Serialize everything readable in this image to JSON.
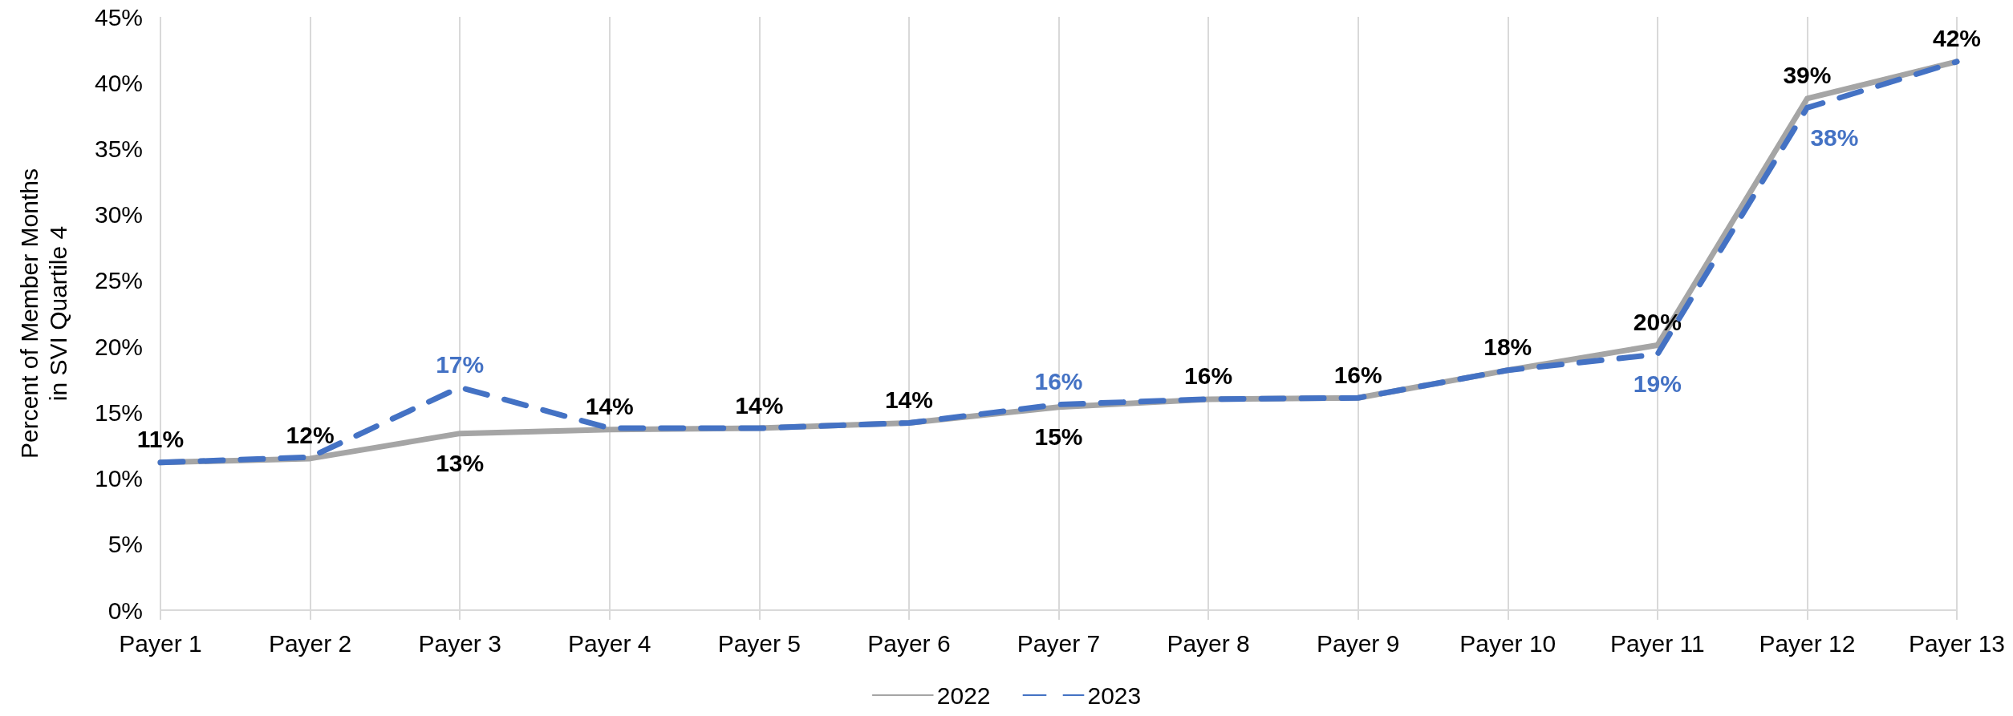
{
  "chart_data": {
    "type": "line",
    "ylabel": "Percent of Member Months\nin SVI Quartile 4",
    "categories": [
      "Payer 1",
      "Payer 2",
      "Payer 3",
      "Payer 4",
      "Payer 5",
      "Payer 6",
      "Payer 7",
      "Payer 8",
      "Payer 9",
      "Payer 10",
      "Payer 11",
      "Payer 12",
      "Payer 13"
    ],
    "series": [
      {
        "name": "2022",
        "color": "#a5a5a5",
        "line_style": "solid",
        "values": [
          11.2,
          11.5,
          13.4,
          13.7,
          13.8,
          14.2,
          15.4,
          16.0,
          16.1,
          18.2,
          20.1,
          38.8,
          41.6
        ],
        "value_labels": [
          "11%",
          "12%",
          "13%",
          "14%",
          "14%",
          "14%",
          "15%",
          "16%",
          "16%",
          "18%",
          "20%",
          "39%",
          "42%"
        ]
      },
      {
        "name": "2023",
        "color": "#4472c4",
        "line_style": "dashed",
        "values": [
          11.2,
          11.6,
          16.9,
          13.8,
          13.8,
          14.2,
          15.6,
          16.0,
          16.1,
          18.2,
          19.4,
          38.1,
          41.6
        ],
        "value_labels": [
          null,
          null,
          "17%",
          null,
          null,
          null,
          "16%",
          null,
          null,
          null,
          "19%",
          "38%",
          null
        ]
      }
    ],
    "ylim": [
      0,
      45
    ],
    "yticks": [
      {
        "value": 0,
        "label": "0%"
      },
      {
        "value": 5,
        "label": "5%"
      },
      {
        "value": 10,
        "label": "10%"
      },
      {
        "value": 15,
        "label": "15%"
      },
      {
        "value": 20,
        "label": "20%"
      },
      {
        "value": 25,
        "label": "25%"
      },
      {
        "value": 30,
        "label": "30%"
      },
      {
        "value": 35,
        "label": "35%"
      },
      {
        "value": 40,
        "label": "40%"
      },
      {
        "value": 45,
        "label": "45%"
      }
    ],
    "grid": "x",
    "legend": "bottom",
    "marker": "none"
  }
}
